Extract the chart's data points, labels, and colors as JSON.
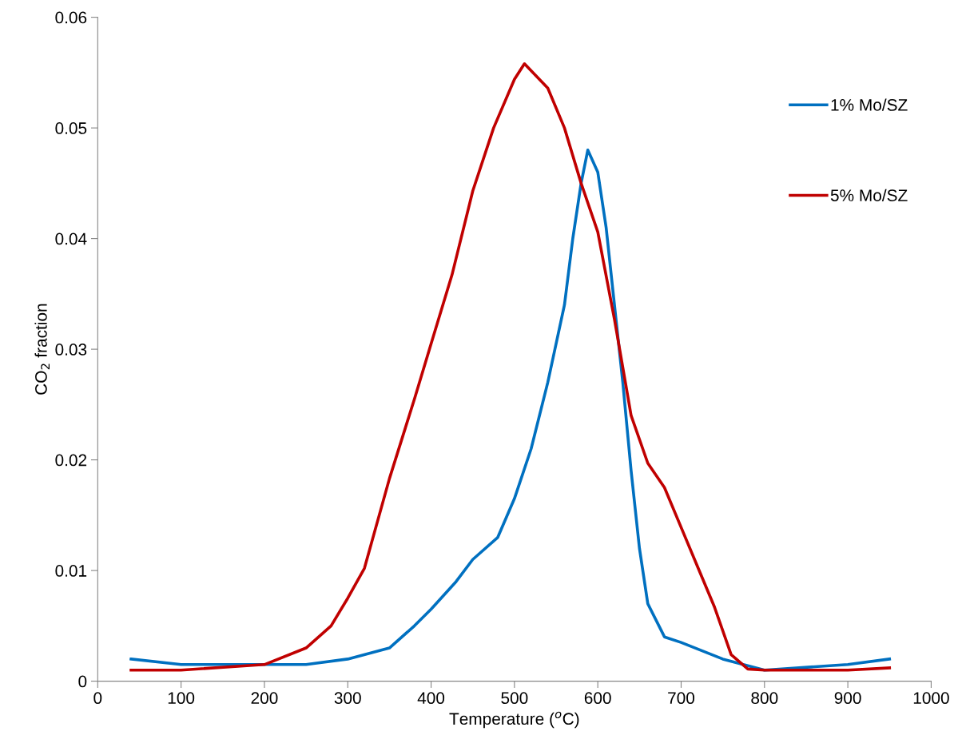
{
  "chart_data": {
    "type": "line",
    "xlabel": "Temperature ($^{o}$C)",
    "ylabel": "CO$_{2}$ fraction",
    "xlim": [
      0,
      1000
    ],
    "xticks": [
      0,
      100,
      200,
      300,
      400,
      500,
      600,
      700,
      800,
      900,
      1000
    ],
    "ylim": [
      0,
      0.06
    ],
    "yticks": [
      0,
      0.01,
      0.02,
      0.03,
      0.04,
      0.05,
      0.06
    ],
    "grid": false,
    "legend": "top right",
    "marker": "none",
    "line_style": "solid",
    "series": [
      {
        "name": "1% Mo/SZ",
        "color": "#0070c0",
        "x": [
          40,
          100,
          200,
          250,
          300,
          350,
          380,
          400,
          430,
          450,
          480,
          500,
          520,
          540,
          560,
          570,
          580,
          588,
          600,
          610,
          620,
          630,
          640,
          650,
          660,
          680,
          700,
          750,
          800,
          900,
          950
        ],
        "values": [
          0.002,
          0.0015,
          0.0015,
          0.0015,
          0.002,
          0.003,
          0.005,
          0.0065,
          0.009,
          0.011,
          0.013,
          0.0165,
          0.021,
          0.027,
          0.034,
          0.04,
          0.045,
          0.048,
          0.046,
          0.041,
          0.034,
          0.027,
          0.019,
          0.012,
          0.007,
          0.004,
          0.0035,
          0.002,
          0.001,
          0.0015,
          0.002
        ]
      },
      {
        "name": "5% Mo/SZ",
        "color": "#c00000",
        "x": [
          40,
          100,
          200,
          250,
          280,
          300,
          320,
          350,
          380,
          400,
          425,
          450,
          475,
          500,
          512,
          540,
          560,
          580,
          600,
          620,
          640,
          660,
          680,
          700,
          720,
          740,
          760,
          780,
          800,
          900,
          950
        ],
        "values": [
          0.001,
          0.001,
          0.0015,
          0.003,
          0.005,
          0.0075,
          0.0102,
          0.0183,
          0.0255,
          0.0305,
          0.0367,
          0.0443,
          0.05,
          0.0544,
          0.0558,
          0.0536,
          0.05,
          0.045,
          0.0406,
          0.0327,
          0.024,
          0.0197,
          0.0175,
          0.0139,
          0.0103,
          0.0067,
          0.0024,
          0.0011,
          0.001,
          0.001,
          0.0012
        ]
      }
    ]
  }
}
